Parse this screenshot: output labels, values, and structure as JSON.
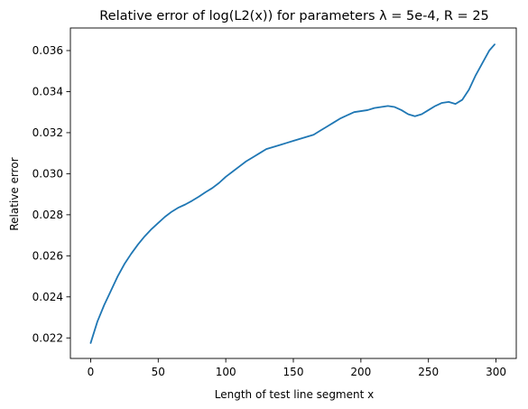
{
  "chart_data": {
    "type": "line",
    "title": "Relative error of log(L2(x)) for parameters λ = 5e-4, R = 25",
    "xlabel": "Length of test line segment x",
    "ylabel": "Relative error",
    "xlim": [
      -15,
      315
    ],
    "ylim": [
      0.021,
      0.0371
    ],
    "xticks": [
      0,
      50,
      100,
      150,
      200,
      250,
      300
    ],
    "xtick_labels": [
      "0",
      "50",
      "100",
      "150",
      "200",
      "250",
      "300"
    ],
    "yticks": [
      0.022,
      0.024,
      0.026,
      0.028,
      0.03,
      0.032,
      0.034,
      0.036
    ],
    "ytick_labels": [
      "0.022",
      "0.024",
      "0.026",
      "0.028",
      "0.030",
      "0.032",
      "0.034",
      "0.036"
    ],
    "grid": false,
    "line_color": "#1f77b4",
    "series": [
      {
        "x": [
          0,
          5,
          10,
          15,
          20,
          25,
          30,
          35,
          40,
          45,
          50,
          55,
          60,
          65,
          70,
          75,
          80,
          85,
          90,
          95,
          100,
          105,
          110,
          115,
          120,
          125,
          130,
          135,
          140,
          145,
          150,
          155,
          160,
          165,
          170,
          175,
          180,
          185,
          190,
          195,
          200,
          205,
          210,
          215,
          220,
          225,
          230,
          235,
          240,
          245,
          250,
          255,
          260,
          265,
          270,
          275,
          280,
          285,
          290,
          295,
          299
        ],
        "values": [
          0.02175,
          0.0228,
          0.0236,
          0.0243,
          0.025,
          0.0256,
          0.0261,
          0.02655,
          0.02695,
          0.0273,
          0.0276,
          0.0279,
          0.02815,
          0.02835,
          0.0285,
          0.02868,
          0.02888,
          0.0291,
          0.0293,
          0.02955,
          0.02985,
          0.0301,
          0.03035,
          0.0306,
          0.0308,
          0.031,
          0.0312,
          0.0313,
          0.0314,
          0.0315,
          0.0316,
          0.0317,
          0.0318,
          0.0319,
          0.0321,
          0.0323,
          0.0325,
          0.0327,
          0.03285,
          0.033,
          0.03305,
          0.0331,
          0.0332,
          0.03325,
          0.0333,
          0.03325,
          0.0331,
          0.0329,
          0.0328,
          0.0329,
          0.0331,
          0.0333,
          0.03345,
          0.0335,
          0.0334,
          0.0336,
          0.0341,
          0.0348,
          0.0354,
          0.036,
          0.0363
        ]
      }
    ]
  }
}
